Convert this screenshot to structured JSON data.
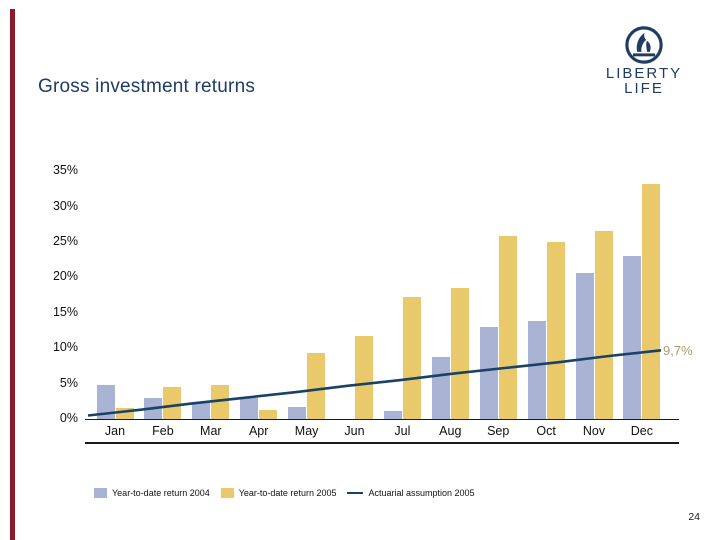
{
  "slide": {
    "title": "Gross investment returns",
    "page_number": "24",
    "accent_color": "#8C1C2C",
    "brand_color": "#1E3C64",
    "logo": {
      "brand_line1": "LIBERTY",
      "brand_line2": "LIFE"
    }
  },
  "chart_data": {
    "type": "bar",
    "title": "Gross investment returns",
    "categories": [
      "Jan",
      "Feb",
      "Mar",
      "Apr",
      "May",
      "Jun",
      "Jul",
      "Aug",
      "Sep",
      "Oct",
      "Nov",
      "Dec"
    ],
    "series": [
      {
        "name": "Year-to-date return 2004",
        "type": "bar",
        "color": "#A9B3D3",
        "values": [
          4.8,
          3.0,
          2.4,
          3.0,
          1.7,
          0,
          1.2,
          8.7,
          13.0,
          13.9,
          20.6,
          23.0
        ]
      },
      {
        "name": "Year-to-date return 2005",
        "type": "bar",
        "color": "#E9C96B",
        "values": [
          1.6,
          4.5,
          4.8,
          1.3,
          9.3,
          11.7,
          17.2,
          18.5,
          25.9,
          25.0,
          26.5,
          33.2
        ]
      },
      {
        "name": "Actuarial assumption 2005",
        "type": "line",
        "color": "#1A4266",
        "values": [
          0.5,
          1.3,
          2.2,
          3.0,
          3.8,
          4.7,
          5.5,
          6.4,
          7.2,
          8.0,
          8.9,
          9.7
        ]
      }
    ],
    "y_tick_labels": [
      "0%",
      "5%",
      "10%",
      "15%",
      "20%",
      "25%",
      "30%",
      "35%"
    ],
    "ylim": [
      0,
      35
    ],
    "y_step": 5,
    "grid": false,
    "legend_position": "bottom",
    "annotation": {
      "text": "9,7%",
      "value": 9.7,
      "color": "#A89C6E"
    }
  }
}
